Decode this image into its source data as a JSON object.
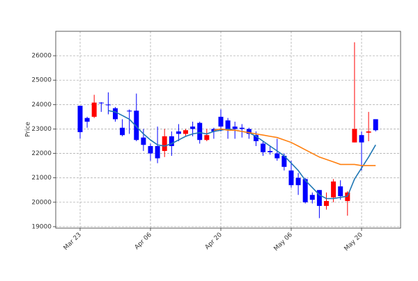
{
  "chart_data": {
    "type": "candlestick",
    "ylabel": "Price",
    "categories": [
      "Mar 23",
      null,
      null,
      null,
      null,
      null,
      null,
      null,
      null,
      null,
      "Apr 06",
      null,
      null,
      null,
      null,
      null,
      null,
      null,
      null,
      null,
      "Apr 20",
      null,
      null,
      null,
      null,
      null,
      null,
      null,
      null,
      null,
      "May 06",
      null,
      null,
      null,
      null,
      null,
      null,
      null,
      null,
      null,
      "May 20",
      null,
      null
    ],
    "open": [
      23950,
      23450,
      23500,
      24080,
      24000,
      23850,
      23050,
      23750,
      23750,
      22650,
      22300,
      22300,
      22100,
      22700,
      22900,
      22800,
      23100,
      23250,
      22550,
      23000,
      23500,
      23350,
      23100,
      23050,
      23000,
      22750,
      22400,
      22100,
      22000,
      21900,
      21300,
      21000,
      20950,
      20300,
      20500,
      19850,
      20200,
      20650,
      20050,
      22450,
      22750,
      22850,
      23400
    ],
    "high": [
      23950,
      23500,
      24400,
      24100,
      24500,
      23900,
      23400,
      23800,
      24450,
      23000,
      22400,
      23100,
      23000,
      22900,
      23200,
      23000,
      23300,
      23300,
      23000,
      23050,
      23800,
      23450,
      23300,
      23200,
      23050,
      22900,
      22500,
      22300,
      22600,
      22000,
      21700,
      21200,
      21000,
      20400,
      20500,
      20400,
      20950,
      20900,
      20450,
      26550,
      22900,
      23700,
      23400
    ],
    "low": [
      22600,
      23050,
      23450,
      23700,
      23600,
      23300,
      22700,
      22800,
      22500,
      22100,
      21700,
      21600,
      21850,
      21900,
      22500,
      22700,
      22700,
      22400,
      22500,
      22600,
      22900,
      22600,
      22600,
      22650,
      22600,
      22300,
      21900,
      21950,
      21700,
      21300,
      20600,
      20300,
      19950,
      19950,
      19350,
      19700,
      20000,
      20100,
      19450,
      22450,
      21300,
      22500,
      22900
    ],
    "close": [
      22870,
      23300,
      24080,
      24050,
      23980,
      23400,
      22750,
      23720,
      22550,
      22350,
      22000,
      21800,
      22700,
      22300,
      22800,
      22950,
      23000,
      22550,
      22750,
      22900,
      23100,
      22950,
      23000,
      23000,
      22800,
      22500,
      22050,
      22050,
      21800,
      21450,
      20700,
      20700,
      20000,
      20100,
      19850,
      20050,
      20850,
      20250,
      20400,
      23000,
      22450,
      22900,
      22950
    ],
    "up_color": "#ff0000",
    "down_color": "#0000ff",
    "moving_averages": [
      {
        "color": "#1f77b4",
        "values": [
          null,
          null,
          null,
          null,
          23750,
          23700,
          23550,
          23400,
          23100,
          22800,
          22550,
          22350,
          22300,
          22400,
          22550,
          22700,
          22800,
          22850,
          22800,
          22900,
          22950,
          23000,
          22950,
          22900,
          22850,
          22700,
          22500,
          22300,
          22100,
          21900,
          21600,
          21300,
          20900,
          20600,
          20300,
          20150,
          20150,
          20200,
          20250,
          20950,
          21400,
          21850,
          22350
        ]
      },
      {
        "color": "#ff7f0e",
        "values": [
          null,
          null,
          null,
          null,
          null,
          null,
          null,
          null,
          null,
          null,
          null,
          null,
          null,
          null,
          null,
          null,
          null,
          null,
          null,
          22950,
          23000,
          22950,
          22950,
          22900,
          22850,
          22800,
          22750,
          22700,
          22650,
          22550,
          22450,
          22300,
          22150,
          22000,
          21850,
          21750,
          21650,
          21550,
          21550,
          21550,
          21500,
          21500,
          21500
        ]
      }
    ],
    "ylim": [
      18940,
      27000
    ],
    "yticks": [
      19000,
      20000,
      21000,
      22000,
      23000,
      24000,
      25000,
      26000
    ],
    "grid": true
  }
}
